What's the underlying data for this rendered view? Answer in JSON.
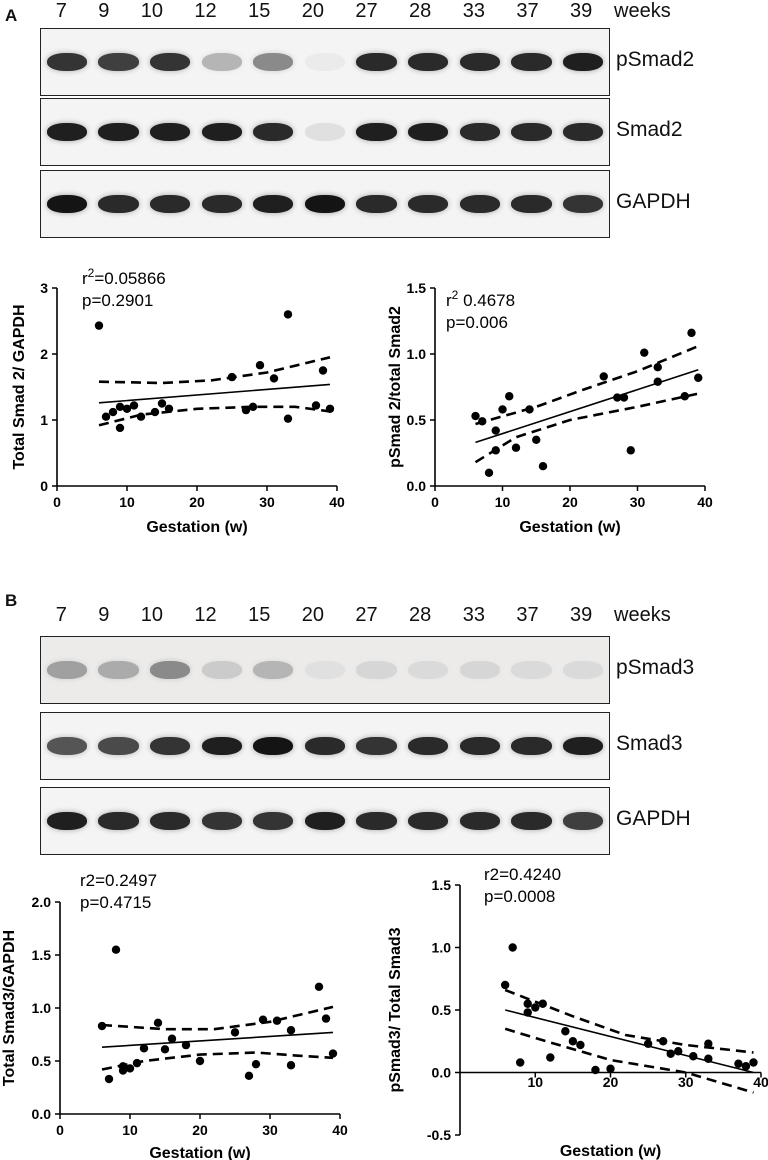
{
  "panels": [
    {
      "letter": "A",
      "lanes": [
        "7",
        "9",
        "10",
        "12",
        "15",
        "20",
        "27",
        "28",
        "33",
        "37",
        "39"
      ],
      "weeks_label": "weeks",
      "blots": [
        {
          "label": "pSmad2",
          "intensity": [
            0.85,
            0.8,
            0.85,
            0.25,
            0.45,
            0.0,
            0.9,
            0.9,
            0.9,
            0.9,
            0.95
          ]
        },
        {
          "label": "Smad2",
          "intensity": [
            0.95,
            0.95,
            0.95,
            0.95,
            0.9,
            0.05,
            0.95,
            0.95,
            0.9,
            0.9,
            0.9
          ]
        },
        {
          "label": "GAPDH",
          "intensity": [
            1.0,
            0.9,
            0.9,
            0.9,
            0.95,
            1.0,
            0.9,
            0.9,
            0.9,
            0.9,
            0.85
          ]
        }
      ]
    },
    {
      "letter": "B",
      "lanes": [
        "7",
        "9",
        "10",
        "12",
        "15",
        "20",
        "27",
        "28",
        "33",
        "37",
        "39"
      ],
      "weeks_label": "weeks",
      "blots": [
        {
          "label": "pSmad3",
          "intensity": [
            0.35,
            0.3,
            0.45,
            0.15,
            0.25,
            0.05,
            0.1,
            0.08,
            0.1,
            0.08,
            0.08
          ]
        },
        {
          "label": "Smad3",
          "intensity": [
            0.7,
            0.75,
            0.85,
            0.95,
            1.0,
            0.9,
            0.85,
            0.9,
            0.9,
            0.9,
            0.95
          ]
        },
        {
          "label": "GAPDH",
          "intensity": [
            0.95,
            0.9,
            0.9,
            0.85,
            0.85,
            0.95,
            0.9,
            0.9,
            0.9,
            0.9,
            0.8
          ]
        }
      ]
    }
  ],
  "chart_data": [
    {
      "type": "scatter",
      "ylabel": "Total Smad 2/ GAPDH",
      "xlabel": "Gestation (w)",
      "annotation": [
        "r2=0.05866",
        "p=0.2901"
      ],
      "xlim": [
        0,
        40
      ],
      "ylim": [
        0,
        3
      ],
      "xticks": [
        "0",
        "10",
        "20",
        "30",
        "40"
      ],
      "yticks": [
        "0",
        "1",
        "2",
        "3"
      ],
      "points": [
        [
          6,
          2.43
        ],
        [
          7,
          1.05
        ],
        [
          8,
          1.12
        ],
        [
          9,
          0.88
        ],
        [
          9,
          1.2
        ],
        [
          10,
          1.17
        ],
        [
          11,
          1.22
        ],
        [
          12,
          1.05
        ],
        [
          14,
          1.12
        ],
        [
          15,
          1.25
        ],
        [
          16,
          1.17
        ],
        [
          25,
          1.65
        ],
        [
          27,
          1.15
        ],
        [
          28,
          1.2
        ],
        [
          29,
          1.83
        ],
        [
          31,
          1.63
        ],
        [
          33,
          1.02
        ],
        [
          33,
          2.6
        ],
        [
          37,
          1.22
        ],
        [
          38,
          1.75
        ],
        [
          39,
          1.17
        ]
      ],
      "fit": [
        [
          6,
          1.26
        ],
        [
          39,
          1.54
        ]
      ],
      "ci_upper": [
        [
          6,
          1.58
        ],
        [
          15,
          1.56
        ],
        [
          22,
          1.6
        ],
        [
          30,
          1.72
        ],
        [
          39,
          1.95
        ]
      ],
      "ci_lower": [
        [
          6,
          0.92
        ],
        [
          12,
          1.08
        ],
        [
          20,
          1.17
        ],
        [
          28,
          1.2
        ],
        [
          34,
          1.2
        ],
        [
          39,
          1.13
        ]
      ]
    },
    {
      "type": "scatter",
      "ylabel": "pSmad 2/total Smad2",
      "xlabel": "Gestation (w)",
      "annotation": [
        "r2 0.4678",
        "p=0.006"
      ],
      "xlim": [
        0,
        40
      ],
      "ylim": [
        0,
        1.5
      ],
      "xticks": [
        "0",
        "10",
        "20",
        "30",
        "40"
      ],
      "yticks": [
        "0.0",
        "0.5",
        "1.0",
        "1.5"
      ],
      "points": [
        [
          6,
          0.53
        ],
        [
          7,
          0.49
        ],
        [
          8,
          0.1
        ],
        [
          9,
          0.27
        ],
        [
          9,
          0.42
        ],
        [
          10,
          0.58
        ],
        [
          11,
          0.68
        ],
        [
          12,
          0.29
        ],
        [
          14,
          0.58
        ],
        [
          15,
          0.35
        ],
        [
          16,
          0.15
        ],
        [
          25,
          0.83
        ],
        [
          27,
          0.67
        ],
        [
          28,
          0.67
        ],
        [
          29,
          0.27
        ],
        [
          31,
          1.01
        ],
        [
          33,
          0.79
        ],
        [
          33,
          0.9
        ],
        [
          37,
          0.68
        ],
        [
          38,
          1.16
        ],
        [
          39,
          0.82
        ]
      ],
      "fit": [
        [
          6,
          0.33
        ],
        [
          39,
          0.88
        ]
      ],
      "ci_upper": [
        [
          6,
          0.47
        ],
        [
          15,
          0.6
        ],
        [
          22,
          0.73
        ],
        [
          30,
          0.87
        ],
        [
          39,
          1.06
        ]
      ],
      "ci_lower": [
        [
          6,
          0.18
        ],
        [
          12,
          0.37
        ],
        [
          20,
          0.5
        ],
        [
          30,
          0.6
        ],
        [
          39,
          0.7
        ]
      ]
    },
    {
      "type": "scatter",
      "ylabel": "Total Smad3/GAPDH",
      "xlabel": "Gestation (w)",
      "annotation": [
        "r2=0.2497",
        "p=0.4715"
      ],
      "xlim": [
        0,
        40
      ],
      "ylim": [
        0,
        2.0
      ],
      "xticks": [
        "0",
        "10",
        "20",
        "30",
        "40"
      ],
      "yticks": [
        "0.0",
        "0.5",
        "1.0",
        "1.5",
        "2.0"
      ],
      "points": [
        [
          6,
          0.83
        ],
        [
          7,
          0.33
        ],
        [
          8,
          1.55
        ],
        [
          9,
          0.41
        ],
        [
          9,
          0.45
        ],
        [
          10,
          0.43
        ],
        [
          11,
          0.48
        ],
        [
          12,
          0.62
        ],
        [
          14,
          0.86
        ],
        [
          15,
          0.61
        ],
        [
          16,
          0.71
        ],
        [
          18,
          0.65
        ],
        [
          20,
          0.5
        ],
        [
          25,
          0.77
        ],
        [
          27,
          0.36
        ],
        [
          28,
          0.47
        ],
        [
          29,
          0.89
        ],
        [
          31,
          0.88
        ],
        [
          33,
          0.46
        ],
        [
          33,
          0.79
        ],
        [
          37,
          1.2
        ],
        [
          38,
          0.9
        ],
        [
          39,
          0.57
        ]
      ],
      "fit": [
        [
          6,
          0.63
        ],
        [
          39,
          0.77
        ]
      ],
      "ci_upper": [
        [
          6,
          0.84
        ],
        [
          15,
          0.8
        ],
        [
          22,
          0.8
        ],
        [
          30,
          0.87
        ],
        [
          39,
          1.01
        ]
      ],
      "ci_lower": [
        [
          6,
          0.42
        ],
        [
          12,
          0.5
        ],
        [
          20,
          0.56
        ],
        [
          28,
          0.58
        ],
        [
          34,
          0.55
        ],
        [
          39,
          0.53
        ]
      ]
    },
    {
      "type": "scatter",
      "ylabel": "pSmad3/ Total Smad3",
      "xlabel": "Gestation (w)",
      "annotation": [
        "r2=0.4240",
        "p=0.0008"
      ],
      "xlim": [
        0,
        40
      ],
      "ylim": [
        -0.5,
        1.5
      ],
      "xticks": [
        "10",
        "20",
        "30",
        "40"
      ],
      "yticks": [
        "-0.5",
        "0.0",
        "0.5",
        "1.0",
        "1.5"
      ],
      "points": [
        [
          6,
          0.7
        ],
        [
          7,
          1.0
        ],
        [
          8,
          0.08
        ],
        [
          9,
          0.55
        ],
        [
          9,
          0.48
        ],
        [
          10,
          0.52
        ],
        [
          11,
          0.55
        ],
        [
          12,
          0.12
        ],
        [
          14,
          0.33
        ],
        [
          15,
          0.25
        ],
        [
          16,
          0.22
        ],
        [
          18,
          0.02
        ],
        [
          20,
          0.03
        ],
        [
          25,
          0.23
        ],
        [
          27,
          0.25
        ],
        [
          28,
          0.15
        ],
        [
          29,
          0.17
        ],
        [
          31,
          0.13
        ],
        [
          33,
          0.11
        ],
        [
          33,
          0.23
        ],
        [
          37,
          0.07
        ],
        [
          38,
          0.05
        ],
        [
          39,
          0.08
        ]
      ],
      "fit": [
        [
          6,
          0.5
        ],
        [
          39,
          0.0
        ]
      ],
      "ci_upper": [
        [
          6,
          0.66
        ],
        [
          15,
          0.45
        ],
        [
          22,
          0.3
        ],
        [
          30,
          0.22
        ],
        [
          39,
          0.16
        ]
      ],
      "ci_lower": [
        [
          6,
          0.35
        ],
        [
          12,
          0.24
        ],
        [
          20,
          0.1
        ],
        [
          30,
          0.0
        ],
        [
          39,
          -0.16
        ]
      ]
    }
  ]
}
